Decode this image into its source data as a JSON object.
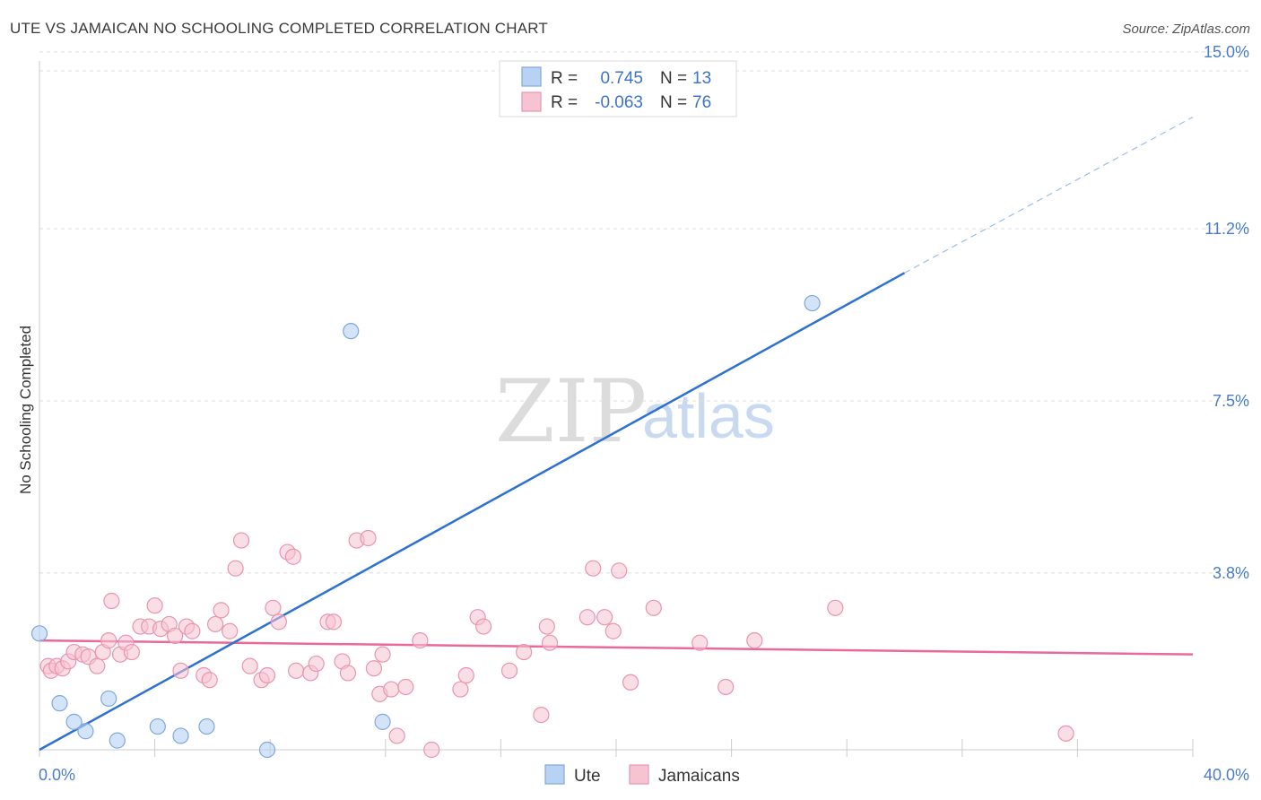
{
  "title": "UTE VS JAMAICAN NO SCHOOLING COMPLETED CORRELATION CHART",
  "source": "Source: ZipAtlas.com",
  "watermark": {
    "zip": "ZIP",
    "atlas": "atlas"
  },
  "colors": {
    "ute_fill": "#b8d2f4",
    "ute_stroke": "#7fa8dc",
    "ute_line": "#2d72d2",
    "jam_fill": "#f6c3d2",
    "jam_stroke": "#e994b1",
    "jam_line": "#e8699a",
    "grid": "#dddddd",
    "axis_label": "#4a7cc9"
  },
  "legend": {
    "r_label": "R =",
    "n_label": "N =",
    "ute": {
      "r": "0.745",
      "n": "13"
    },
    "jam": {
      "r": "-0.063",
      "n": "76"
    }
  },
  "bottom_legend": {
    "ute": "Ute",
    "jam": "Jamaicans"
  },
  "chart_data": {
    "type": "scatter",
    "title": "UTE VS JAMAICAN NO SCHOOLING COMPLETED CORRELATION CHART",
    "xlabel": "",
    "ylabel": "No Schooling Completed",
    "xlim": [
      0,
      40
    ],
    "ylim": [
      0,
      15.5
    ],
    "x_tick_labels": [
      "0.0%",
      "40.0%"
    ],
    "y_ticks": [
      3.8,
      7.5,
      11.2,
      15.0
    ],
    "y_tick_labels": [
      "3.8%",
      "7.5%",
      "11.2%",
      "15.0%"
    ],
    "series": [
      {
        "name": "Ute",
        "r": 0.745,
        "n": 13,
        "points": [
          [
            0.0,
            2.5
          ],
          [
            0.7,
            1.0
          ],
          [
            1.2,
            0.6
          ],
          [
            1.6,
            0.4
          ],
          [
            2.4,
            1.1
          ],
          [
            2.7,
            0.2
          ],
          [
            4.1,
            0.5
          ],
          [
            4.9,
            0.3
          ],
          [
            5.8,
            0.5
          ],
          [
            7.9,
            0.0
          ],
          [
            10.8,
            9.0
          ],
          [
            11.9,
            0.6
          ],
          [
            26.8,
            9.6
          ]
        ],
        "trend": {
          "x": [
            0.0,
            30.0
          ],
          "y": [
            0.0,
            10.25
          ]
        },
        "trend_extension": {
          "x": [
            30.0,
            40.0
          ],
          "y": [
            10.25,
            13.6
          ]
        }
      },
      {
        "name": "Jamaicans",
        "r": -0.063,
        "n": 76,
        "points": [
          [
            0.3,
            1.8
          ],
          [
            0.4,
            1.7
          ],
          [
            0.6,
            1.8
          ],
          [
            0.8,
            1.75
          ],
          [
            1.0,
            1.9
          ],
          [
            1.2,
            2.1
          ],
          [
            1.5,
            2.05
          ],
          [
            1.7,
            2.0
          ],
          [
            2.0,
            1.8
          ],
          [
            2.2,
            2.1
          ],
          [
            2.4,
            2.35
          ],
          [
            2.5,
            3.2
          ],
          [
            2.8,
            2.05
          ],
          [
            3.0,
            2.3
          ],
          [
            3.2,
            2.1
          ],
          [
            3.5,
            2.65
          ],
          [
            3.8,
            2.65
          ],
          [
            4.0,
            3.1
          ],
          [
            4.2,
            2.6
          ],
          [
            4.5,
            2.7
          ],
          [
            4.7,
            2.45
          ],
          [
            4.9,
            1.7
          ],
          [
            5.1,
            2.65
          ],
          [
            5.3,
            2.55
          ],
          [
            5.7,
            1.6
          ],
          [
            5.9,
            1.5
          ],
          [
            6.1,
            2.7
          ],
          [
            6.3,
            3.0
          ],
          [
            6.6,
            2.55
          ],
          [
            6.8,
            3.9
          ],
          [
            7.0,
            4.5
          ],
          [
            7.3,
            1.8
          ],
          [
            7.7,
            1.5
          ],
          [
            7.9,
            1.6
          ],
          [
            8.1,
            3.05
          ],
          [
            8.3,
            2.75
          ],
          [
            8.6,
            4.25
          ],
          [
            8.8,
            4.15
          ],
          [
            8.9,
            1.7
          ],
          [
            9.4,
            1.65
          ],
          [
            9.6,
            1.85
          ],
          [
            10.0,
            2.75
          ],
          [
            10.2,
            2.75
          ],
          [
            10.5,
            1.9
          ],
          [
            10.7,
            1.65
          ],
          [
            11.0,
            4.5
          ],
          [
            11.4,
            4.55
          ],
          [
            11.6,
            1.75
          ],
          [
            11.9,
            2.05
          ],
          [
            11.8,
            1.2
          ],
          [
            12.2,
            1.3
          ],
          [
            12.4,
            0.3
          ],
          [
            12.7,
            1.35
          ],
          [
            13.2,
            2.35
          ],
          [
            13.6,
            0.0
          ],
          [
            14.6,
            1.3
          ],
          [
            14.8,
            1.6
          ],
          [
            15.2,
            2.85
          ],
          [
            15.4,
            2.65
          ],
          [
            16.3,
            1.7
          ],
          [
            16.8,
            2.1
          ],
          [
            17.4,
            0.75
          ],
          [
            17.6,
            2.65
          ],
          [
            17.7,
            2.3
          ],
          [
            19.0,
            2.85
          ],
          [
            19.2,
            3.9
          ],
          [
            19.6,
            2.85
          ],
          [
            19.9,
            2.55
          ],
          [
            20.1,
            3.85
          ],
          [
            20.5,
            1.45
          ],
          [
            21.3,
            3.05
          ],
          [
            22.9,
            2.3
          ],
          [
            23.8,
            1.35
          ],
          [
            24.8,
            2.35
          ],
          [
            27.6,
            3.05
          ],
          [
            35.6,
            0.35
          ]
        ],
        "trend": {
          "x": [
            0.0,
            40.0
          ],
          "y": [
            2.35,
            2.05
          ]
        }
      }
    ]
  }
}
